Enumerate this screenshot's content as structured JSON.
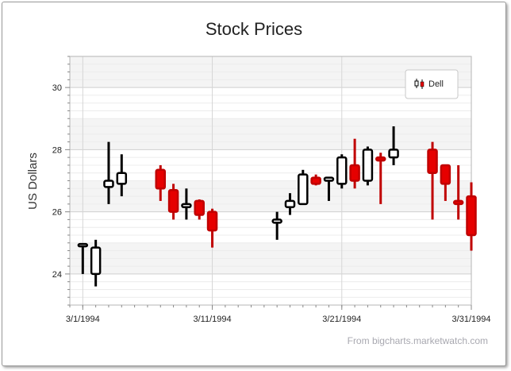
{
  "chart_data": {
    "type": "candlestick",
    "title": "Stock Prices",
    "xlabel": "",
    "ylabel": "US Dollars",
    "ylim": [
      23,
      31
    ],
    "yticks": [
      24,
      26,
      28,
      30
    ],
    "xlim": [
      "1994-02-28",
      "1994-03-31"
    ],
    "xticks": [
      "3/1/1994",
      "3/11/1994",
      "3/21/1994",
      "3/31/1994"
    ],
    "grid": true,
    "legend": {
      "position": "top-right",
      "entries": [
        "Dell"
      ]
    },
    "rising_color": "#000000",
    "falling_color": "#e60000",
    "series": [
      {
        "name": "Dell",
        "points": [
          {
            "date": "1994-03-01",
            "open": 24.9,
            "high": 24.95,
            "low": 24.0,
            "close": 24.95
          },
          {
            "date": "1994-03-02",
            "open": 24.0,
            "high": 25.1,
            "low": 23.6,
            "close": 24.85
          },
          {
            "date": "1994-03-03",
            "open": 26.8,
            "high": 28.25,
            "low": 26.25,
            "close": 27.0
          },
          {
            "date": "1994-03-04",
            "open": 26.9,
            "high": 27.85,
            "low": 26.5,
            "close": 27.25
          },
          {
            "date": "1994-03-07",
            "open": 27.35,
            "high": 27.5,
            "low": 26.35,
            "close": 26.75
          },
          {
            "date": "1994-03-08",
            "open": 26.7,
            "high": 26.9,
            "low": 25.75,
            "close": 26.0
          },
          {
            "date": "1994-03-09",
            "open": 26.15,
            "high": 26.75,
            "low": 25.75,
            "close": 26.25
          },
          {
            "date": "1994-03-10",
            "open": 26.35,
            "high": 26.4,
            "low": 25.75,
            "close": 25.9
          },
          {
            "date": "1994-03-11",
            "open": 26.0,
            "high": 26.1,
            "low": 24.85,
            "close": 25.4
          },
          {
            "date": "1994-03-16",
            "open": 25.65,
            "high": 26.0,
            "low": 25.1,
            "close": 25.75
          },
          {
            "date": "1994-03-17",
            "open": 26.15,
            "high": 26.6,
            "low": 25.9,
            "close": 26.35
          },
          {
            "date": "1994-03-18",
            "open": 26.25,
            "high": 27.35,
            "low": 26.25,
            "close": 27.2
          },
          {
            "date": "1994-03-19",
            "open": 27.1,
            "high": 27.2,
            "low": 26.85,
            "close": 26.9
          },
          {
            "date": "1994-03-20",
            "open": 27.0,
            "high": 27.05,
            "low": 26.35,
            "close": 27.1
          },
          {
            "date": "1994-03-21",
            "open": 26.9,
            "high": 27.85,
            "low": 26.75,
            "close": 27.75
          },
          {
            "date": "1994-03-22",
            "open": 27.5,
            "high": 28.35,
            "low": 26.75,
            "close": 27.0
          },
          {
            "date": "1994-03-23",
            "open": 27.0,
            "high": 28.1,
            "low": 26.85,
            "close": 28.0
          },
          {
            "date": "1994-03-24",
            "open": 27.75,
            "high": 27.9,
            "low": 26.25,
            "close": 27.65
          },
          {
            "date": "1994-03-25",
            "open": 27.75,
            "high": 28.75,
            "low": 27.5,
            "close": 28.0
          },
          {
            "date": "1994-03-28",
            "open": 28.0,
            "high": 28.25,
            "low": 25.75,
            "close": 27.25
          },
          {
            "date": "1994-03-29",
            "open": 27.5,
            "high": 27.5,
            "low": 26.35,
            "close": 26.9
          },
          {
            "date": "1994-03-30",
            "open": 26.35,
            "high": 27.5,
            "low": 25.75,
            "close": 26.25
          },
          {
            "date": "1994-03-31",
            "open": 26.5,
            "high": 26.95,
            "low": 24.75,
            "close": 25.25
          }
        ]
      }
    ]
  },
  "source": "From bigcharts.marketwatch.com"
}
